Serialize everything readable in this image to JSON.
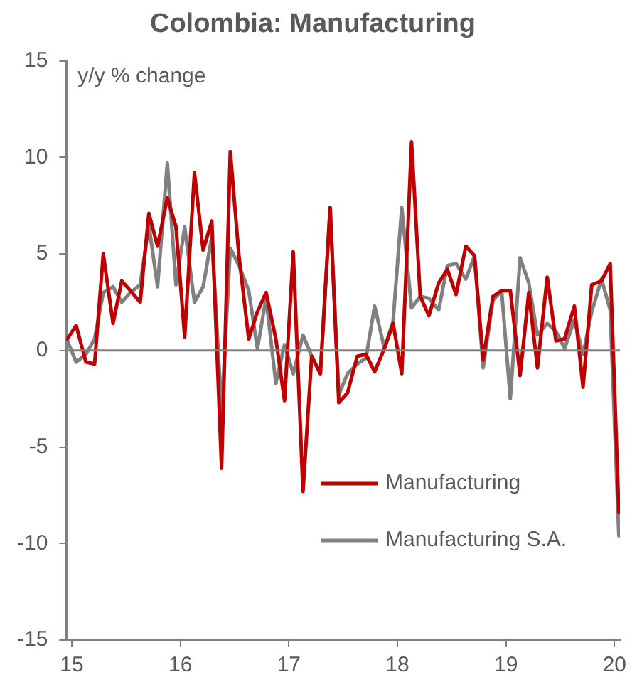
{
  "chart_data": {
    "type": "line",
    "title": "Colombia: Manufacturing",
    "ylabel": "y/y % change",
    "x": [
      14.96,
      15.04,
      15.13,
      15.21,
      15.29,
      15.38,
      15.46,
      15.54,
      15.63,
      15.71,
      15.79,
      15.88,
      15.96,
      16.04,
      16.13,
      16.21,
      16.29,
      16.38,
      16.46,
      16.54,
      16.63,
      16.71,
      16.79,
      16.88,
      16.96,
      17.04,
      17.13,
      17.21,
      17.29,
      17.38,
      17.46,
      17.54,
      17.63,
      17.71,
      17.79,
      17.88,
      17.96,
      18.04,
      18.13,
      18.21,
      18.29,
      18.38,
      18.46,
      18.54,
      18.63,
      18.71,
      18.79,
      18.88,
      18.96,
      19.04,
      19.13,
      19.21,
      19.29,
      19.38,
      19.46,
      19.54,
      19.63,
      19.71,
      19.79,
      19.88,
      19.96,
      20.04
    ],
    "series": [
      {
        "name": "Manufacturing",
        "color": "#c00000",
        "values": [
          0.6,
          1.3,
          -0.6,
          -0.7,
          5.0,
          1.4,
          3.6,
          3.1,
          2.5,
          7.1,
          5.4,
          7.9,
          6.4,
          0.7,
          9.2,
          5.2,
          6.7,
          -6.1,
          10.3,
          4.9,
          0.6,
          2.0,
          3.0,
          0.6,
          -2.6,
          5.1,
          -7.3,
          -0.3,
          -1.2,
          7.4,
          -2.7,
          -2.2,
          -0.3,
          -0.2,
          -1.1,
          0.1,
          1.4,
          -1.2,
          10.8,
          2.8,
          1.8,
          3.5,
          4.2,
          2.9,
          5.4,
          4.9,
          -0.5,
          2.8,
          3.1,
          3.1,
          -1.3,
          3.0,
          -0.9,
          3.8,
          0.5,
          0.6,
          2.3,
          -1.9,
          3.4,
          3.6,
          4.5,
          -8.4
        ]
      },
      {
        "name": "Manufacturing S.A.",
        "color": "#808080",
        "values": [
          0.5,
          -0.6,
          -0.2,
          0.6,
          3.0,
          3.3,
          2.5,
          3.0,
          3.4,
          6.5,
          3.3,
          9.7,
          3.4,
          6.4,
          2.5,
          3.3,
          5.9,
          -3.2,
          5.3,
          4.4,
          3.1,
          0.1,
          2.7,
          -1.7,
          0.3,
          -1.2,
          0.8,
          -0.3,
          -1.2,
          7.4,
          -2.3,
          -1.2,
          -0.7,
          -0.4,
          2.3,
          0.1,
          1.5,
          7.4,
          2.2,
          2.8,
          2.7,
          2.1,
          4.4,
          4.5,
          3.7,
          4.9,
          -0.9,
          2.6,
          3.1,
          -2.5,
          4.8,
          3.5,
          0.8,
          1.4,
          1.0,
          0.1,
          1.6,
          -0.2,
          2.0,
          3.7,
          2.1,
          -9.6
        ]
      }
    ],
    "xlim": [
      14.95,
      20.05
    ],
    "xticks": [
      15,
      16,
      17,
      18,
      19,
      20
    ],
    "ylim": [
      -15,
      15
    ],
    "yticks": [
      -15,
      -10,
      -5,
      0,
      5,
      10,
      15
    ],
    "ref_lines": [
      {
        "axis": "y",
        "value": 0,
        "color": "#808080"
      }
    ],
    "grid": false,
    "legend": "bottom right",
    "marker": "none",
    "line_style": "solid"
  }
}
